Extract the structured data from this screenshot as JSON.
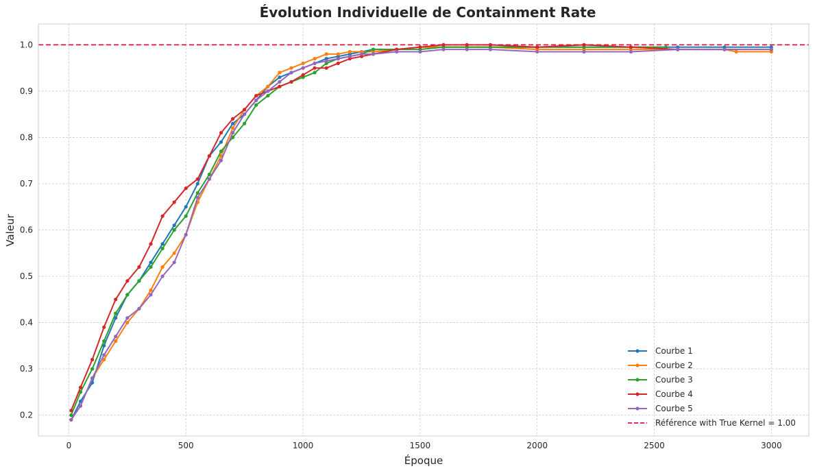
{
  "chart_data": {
    "type": "line",
    "title": "Évolution Individuelle de Containment Rate",
    "xlabel": "Époque",
    "ylabel": "Valeur",
    "xlim": [
      -130,
      3160
    ],
    "ylim": [
      0.155,
      1.045
    ],
    "xticks": [
      0,
      500,
      1000,
      1500,
      2000,
      2500,
      3000
    ],
    "yticks": [
      0.2,
      0.3,
      0.4,
      0.5,
      0.6,
      0.7,
      0.8,
      0.9,
      1.0
    ],
    "xtick_labels": [
      "0",
      "500",
      "1000",
      "1500",
      "2000",
      "2500",
      "3000"
    ],
    "ytick_labels": [
      "0.2",
      "0.3",
      "0.4",
      "0.5",
      "0.6",
      "0.7",
      "0.8",
      "0.9",
      "1.0"
    ],
    "grid": true,
    "legend_position": "bottom-right",
    "reference": {
      "label": "Référence with True Kernel = 1.00",
      "value": 1.0,
      "color": "#dc143c"
    },
    "series": [
      {
        "name": "Courbe 1",
        "color": "#1f77b4",
        "x": [
          10,
          50,
          100,
          150,
          200,
          250,
          300,
          350,
          400,
          450,
          500,
          550,
          600,
          650,
          700,
          750,
          800,
          850,
          900,
          950,
          1000,
          1050,
          1100,
          1150,
          1200,
          1250,
          1300,
          1400,
          1500,
          1600,
          1700,
          1800,
          2000,
          2200,
          2400,
          2600,
          2800,
          3000
        ],
        "y": [
          0.19,
          0.23,
          0.27,
          0.35,
          0.41,
          0.46,
          0.49,
          0.53,
          0.57,
          0.61,
          0.65,
          0.7,
          0.76,
          0.79,
          0.83,
          0.85,
          0.88,
          0.91,
          0.93,
          0.94,
          0.95,
          0.96,
          0.97,
          0.975,
          0.98,
          0.985,
          0.99,
          0.99,
          0.995,
          0.995,
          0.995,
          0.995,
          0.995,
          0.995,
          0.995,
          0.995,
          0.995,
          0.995
        ]
      },
      {
        "name": "Courbe 2",
        "color": "#ff7f0e",
        "x": [
          10,
          50,
          100,
          150,
          200,
          250,
          300,
          350,
          400,
          450,
          500,
          550,
          600,
          650,
          700,
          750,
          800,
          850,
          900,
          950,
          1000,
          1050,
          1100,
          1150,
          1200,
          1250,
          1300,
          1400,
          1500,
          1600,
          1700,
          1800,
          2000,
          2200,
          2400,
          2600,
          2800,
          2850,
          3000
        ],
        "y": [
          0.19,
          0.22,
          0.28,
          0.32,
          0.36,
          0.4,
          0.43,
          0.47,
          0.52,
          0.55,
          0.59,
          0.66,
          0.71,
          0.76,
          0.82,
          0.86,
          0.89,
          0.91,
          0.94,
          0.95,
          0.96,
          0.97,
          0.98,
          0.98,
          0.985,
          0.985,
          0.985,
          0.99,
          0.995,
          0.995,
          0.995,
          0.995,
          0.99,
          0.99,
          0.99,
          0.99,
          0.99,
          0.985,
          0.985
        ]
      },
      {
        "name": "Courbe 3",
        "color": "#2ca02c",
        "x": [
          10,
          50,
          100,
          150,
          200,
          250,
          300,
          350,
          400,
          450,
          500,
          550,
          600,
          650,
          700,
          750,
          800,
          850,
          900,
          950,
          1000,
          1050,
          1100,
          1150,
          1200,
          1250,
          1300,
          1400,
          1500,
          1600,
          1700,
          1800,
          2000,
          2200,
          2400,
          2550
        ],
        "y": [
          0.2,
          0.25,
          0.3,
          0.36,
          0.42,
          0.46,
          0.49,
          0.52,
          0.56,
          0.6,
          0.63,
          0.68,
          0.72,
          0.77,
          0.8,
          0.83,
          0.87,
          0.89,
          0.91,
          0.92,
          0.93,
          0.94,
          0.96,
          0.97,
          0.975,
          0.98,
          0.99,
          0.99,
          0.99,
          0.995,
          0.995,
          0.995,
          0.995,
          0.995,
          0.995,
          0.995
        ]
      },
      {
        "name": "Courbe 4",
        "color": "#d62728",
        "x": [
          10,
          50,
          100,
          150,
          200,
          250,
          300,
          350,
          400,
          450,
          500,
          550,
          600,
          650,
          700,
          750,
          800,
          850,
          900,
          950,
          1000,
          1050,
          1100,
          1150,
          1200,
          1250,
          1300,
          1400,
          1500,
          1600,
          1700,
          1800,
          2000,
          2200,
          2400,
          2600,
          2800,
          3000
        ],
        "y": [
          0.21,
          0.26,
          0.32,
          0.39,
          0.45,
          0.49,
          0.52,
          0.57,
          0.63,
          0.66,
          0.69,
          0.71,
          0.76,
          0.81,
          0.84,
          0.86,
          0.89,
          0.9,
          0.91,
          0.92,
          0.935,
          0.95,
          0.95,
          0.96,
          0.97,
          0.975,
          0.98,
          0.99,
          0.995,
          1.0,
          1.0,
          1.0,
          0.995,
          1.0,
          0.995,
          0.99,
          0.99,
          0.99
        ]
      },
      {
        "name": "Courbe 5",
        "color": "#9467bd",
        "x": [
          10,
          50,
          100,
          150,
          200,
          250,
          300,
          350,
          400,
          450,
          500,
          550,
          600,
          650,
          700,
          750,
          800,
          850,
          900,
          950,
          1000,
          1050,
          1100,
          1150,
          1200,
          1250,
          1300,
          1400,
          1500,
          1600,
          1700,
          1800,
          2000,
          2200,
          2400,
          2600,
          2800,
          3000
        ],
        "y": [
          0.19,
          0.22,
          0.28,
          0.33,
          0.37,
          0.41,
          0.43,
          0.46,
          0.5,
          0.53,
          0.59,
          0.67,
          0.71,
          0.75,
          0.81,
          0.85,
          0.88,
          0.9,
          0.92,
          0.94,
          0.95,
          0.96,
          0.965,
          0.97,
          0.975,
          0.98,
          0.98,
          0.985,
          0.985,
          0.99,
          0.99,
          0.99,
          0.985,
          0.985,
          0.985,
          0.99,
          0.99,
          0.99
        ]
      }
    ]
  }
}
